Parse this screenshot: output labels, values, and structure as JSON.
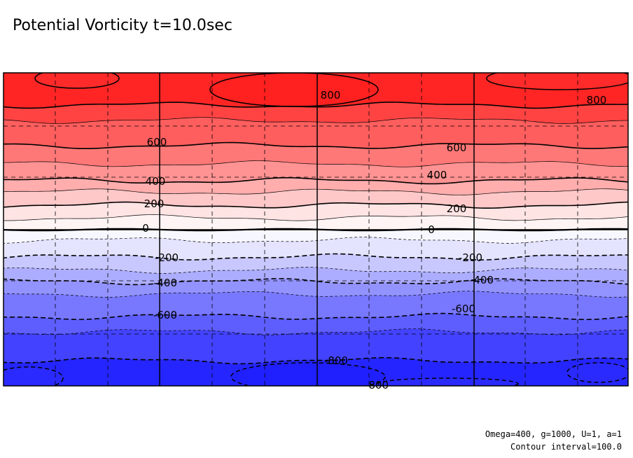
{
  "chart_data": {
    "type": "contour",
    "title": "Potential Vorticity t=10.0sec",
    "field": "Potential Vorticity",
    "time_label": "t=10.0sec",
    "contour_interval": 100.0,
    "levels": [
      -900,
      -800,
      -700,
      -600,
      -500,
      -400,
      -300,
      -200,
      -100,
      0,
      100,
      200,
      300,
      400,
      500,
      600,
      700,
      800,
      900
    ],
    "labeled_contours": [
      "800",
      "800",
      "600",
      "600",
      "400",
      "400",
      "200",
      "200",
      "0",
      "0",
      "-200",
      "-200",
      "-400",
      "-400",
      "-600",
      "-600",
      "-800",
      "-800"
    ],
    "value_range": [
      -900,
      900
    ],
    "fill_colors": {
      "-900": "#2525ff",
      "-800": "#4343ff",
      "-700": "#5e5eff",
      "-600": "#7878ff",
      "-500": "#9393ff",
      "-400": "#adadff",
      "-300": "#c8c8ff",
      "-200": "#e4e4ff",
      "-100": "#f7f7ff",
      "0": "#fff4f4",
      "100": "#ffe4e4",
      "200": "#ffc8c8",
      "300": "#ffadad",
      "400": "#ff9393",
      "500": "#ff7878",
      "600": "#ff5e5e",
      "700": "#ff4343",
      "800": "#ff2525"
    },
    "positive_line_style": "solid",
    "negative_line_style": "dashed",
    "grid": true
  },
  "footer": {
    "params": "Omega=400, g=1000, U=1, a=1",
    "interval": "Contour interval=100.0"
  }
}
